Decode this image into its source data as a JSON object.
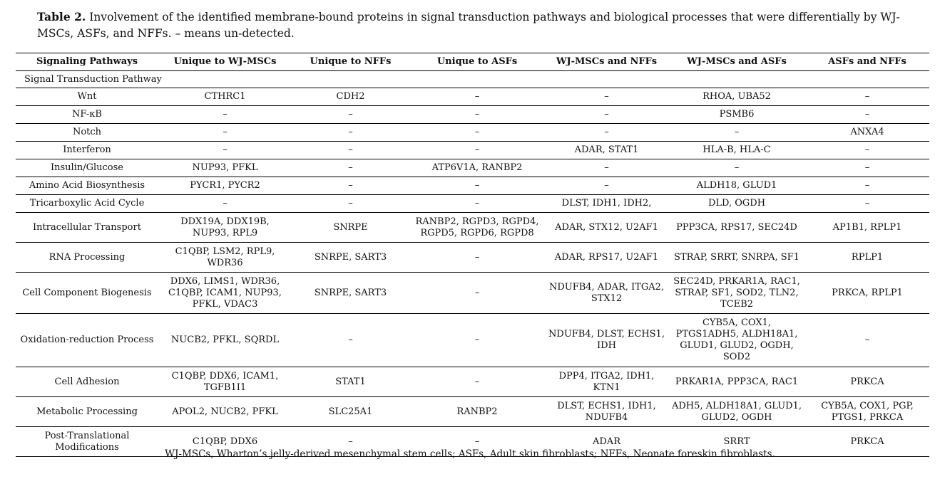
{
  "caption": {
    "label": "Table 2.",
    "text": "Involvement of the identified membrane-bound proteins in signal transduction pathways and biological processes that were differentially by WJ-MSCs, ASFs, and NFFs. – means un-detected."
  },
  "table": {
    "headers": [
      "Signaling Pathways",
      "Unique to WJ-MSCs",
      "Unique to NFFs",
      "Unique to ASFs",
      "WJ-MSCs and NFFs",
      "WJ-MSCs and ASFs",
      "ASFs and NFFs"
    ],
    "section": "Signal Transduction Pathway",
    "rows": [
      {
        "h": 24,
        "cells": [
          "Wnt",
          "CTHRC1",
          "CDH2",
          "–",
          "–",
          "RHOA, UBA52",
          "–"
        ]
      },
      {
        "h": 24,
        "cells": [
          "NF-κB",
          "–",
          "–",
          "–",
          "–",
          "PSMB6",
          "–"
        ]
      },
      {
        "h": 24,
        "cells": [
          "Notch",
          "–",
          "–",
          "–",
          "–",
          "–",
          "ANXA4"
        ]
      },
      {
        "h": 24,
        "cells": [
          "Interferon",
          "–",
          "–",
          "–",
          "ADAR, STAT1",
          "HLA-B, HLA-C",
          "–"
        ]
      },
      {
        "h": 24,
        "cells": [
          "Insulin/Glucose",
          "NUP93, PFKL",
          "–",
          "ATP6V1A, RANBP2",
          "–",
          "–",
          "–"
        ]
      },
      {
        "h": 24,
        "cells": [
          "Amino Acid Biosynthesis",
          "PYCR1, PYCR2",
          "–",
          "–",
          "–",
          "ALDH18, GLUD1",
          "–"
        ]
      },
      {
        "h": 24,
        "cells": [
          "Tricarboxylic Acid Cycle",
          "–",
          "–",
          "–",
          "DLST, IDH1, IDH2,",
          "DLD, OGDH",
          "–"
        ]
      },
      {
        "h": 41,
        "cells": [
          "Intracellular Transport",
          "DDX19A, DDX19B, NUP93, RPL9",
          "SNRPE",
          "RANBP2, RGPD3, RGPD4, RGPD5, RGPD6, RGPD8",
          "ADAR, STX12, U2AF1",
          "PPP3CA, RPS17, SEC24D",
          "AP1B1, RPLP1"
        ]
      },
      {
        "h": 41,
        "cells": [
          "RNA Processing",
          "C1QBP, LSM2, RPL9, WDR36",
          "SNRPE, SART3",
          "–",
          "ADAR, RPS17, U2AF1",
          "STRAP, SRRT, SNRPA, SF1",
          "RPLP1"
        ]
      },
      {
        "h": 57,
        "cells": [
          "Cell Component Biogenesis",
          "DDX6, LIMS1, WDR36, C1QBP, ICAM1, NUP93, PFKL, VDAC3",
          "SNRPE, SART3",
          "–",
          "NDUFB4, ADAR, ITGA2, STX12",
          "SEC24D, PRKAR1A, RAC1, STRAP, SF1, SOD2, TLN2, TCEB2",
          "PRKCA, RPLP1"
        ]
      },
      {
        "h": 74,
        "cells": [
          "Oxidation-reduction Process",
          "NUCB2, PFKL, SQRDL",
          "–",
          "–",
          "NDUFB4, DLST, ECHS1, IDH",
          "CYB5A, COX1, PTGS1ADH5, ALDH18A1, GLUD1, GLUD2, OGDH, SOD2",
          "–"
        ]
      },
      {
        "h": 41,
        "cells": [
          "Cell Adhesion",
          "C1QBP, DDX6, ICAM1, TGFB1I1",
          "STAT1",
          "–",
          "DPP4, ITGA2, IDH1, KTN1",
          "PRKAR1A, PPP3CA, RAC1",
          "PRKCA"
        ]
      },
      {
        "h": 41,
        "cells": [
          "Metabolic Processing",
          "APOL2, NUCB2, PFKL",
          "SLC25A1",
          "RANBP2",
          "DLST, ECHS1, IDH1, NDUFB4",
          "ADH5, ALDH18A1, GLUD1, GLUD2, OGDH",
          "CYB5A, COX1, PGP, PTGS1, PRKCA"
        ]
      },
      {
        "h": 41,
        "cells": [
          "Post-Translational Modifications",
          "C1QBP, DDX6",
          "–",
          "–",
          "ADAR",
          "SRRT",
          "PRKCA"
        ]
      }
    ]
  },
  "footnote": "WJ-MSCs, Wharton’s jelly-derived mesenchymal stem cells; ASFs, Adult skin fibroblasts; NFFs, Neonate foreskin fibroblasts."
}
